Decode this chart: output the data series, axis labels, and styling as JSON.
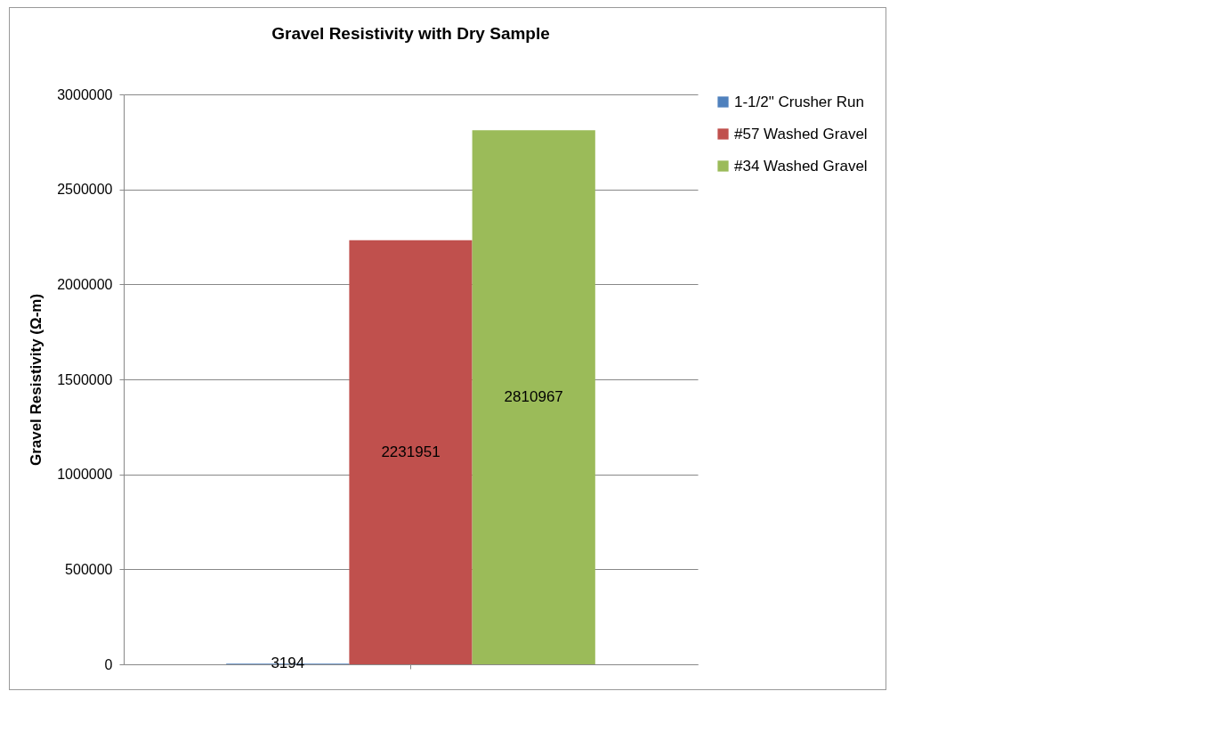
{
  "chart_data": {
    "type": "bar",
    "title": "Gravel Resistivity with Dry Sample",
    "ylabel": "Gravel Resistivity (Ω-m)",
    "categories": [
      null
    ],
    "series": [
      {
        "name": "1-1/2\" Crusher Run",
        "color": "#4f81bd",
        "values": [
          3194
        ]
      },
      {
        "name": "#57 Washed Gravel",
        "color": "#c0504d",
        "values": [
          2231951
        ]
      },
      {
        "name": "#34 Washed Gravel",
        "color": "#9bbb59",
        "values": [
          2810967
        ]
      }
    ],
    "ylim": [
      0,
      3000000
    ],
    "yticks": [
      0,
      500000,
      1000000,
      1500000,
      2000000,
      2500000,
      3000000
    ],
    "grid": "y",
    "legend": "right",
    "data_labels": true
  }
}
